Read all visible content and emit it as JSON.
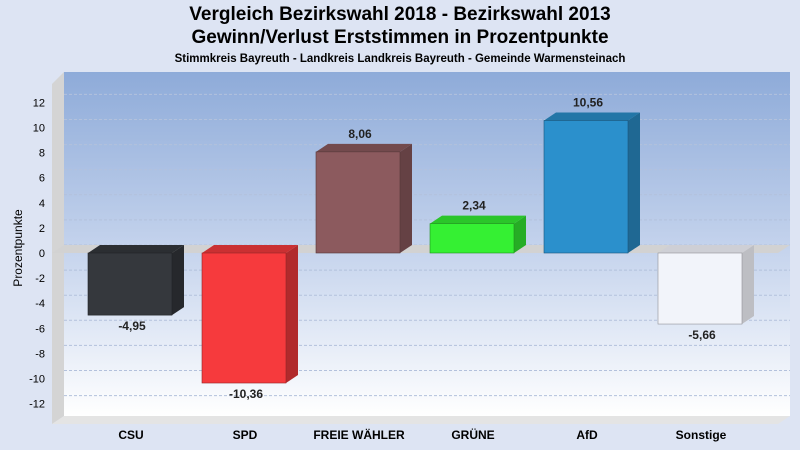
{
  "header": {
    "title_line1": "Vergleich Bezirkswahl 2018 - Bezirkswahl 2013",
    "title_line2": "Gewinn/Verlust Erststimmen in Prozentpunkte",
    "subtitle": "Stimmkreis Bayreuth - Landkreis Landkreis Bayreuth - Gemeinde Warmensteinach"
  },
  "chart_data": {
    "type": "bar",
    "title": "Vergleich Bezirkswahl 2018 - Bezirkswahl 2013 / Gewinn/Verlust Erststimmen in Prozentpunkte",
    "subtitle": "Stimmkreis Bayreuth - Landkreis Landkreis Bayreuth - Gemeinde Warmensteinach",
    "ylabel": "Prozentpunkte",
    "xlabel": "",
    "ylim": [
      -13,
      13
    ],
    "yticks": [
      12,
      10,
      8,
      6,
      4,
      2,
      0,
      -2,
      -4,
      -6,
      -8,
      -10,
      -12
    ],
    "grid": true,
    "categories": [
      "CSU",
      "SPD",
      "FREIE WÄHLER",
      "GRÜNE",
      "AfD",
      "Sonstige"
    ],
    "values": [
      -4.95,
      -10.36,
      8.06,
      2.34,
      10.56,
      -5.66
    ],
    "labels": [
      "-4,95",
      "-10,36",
      "8,06",
      "2,34",
      "10,56",
      "-5,66"
    ],
    "colors": [
      "#35383d",
      "#f63a3d",
      "#8c5a5e",
      "#35f033",
      "#2b90cc",
      "#f2f4fa"
    ]
  }
}
